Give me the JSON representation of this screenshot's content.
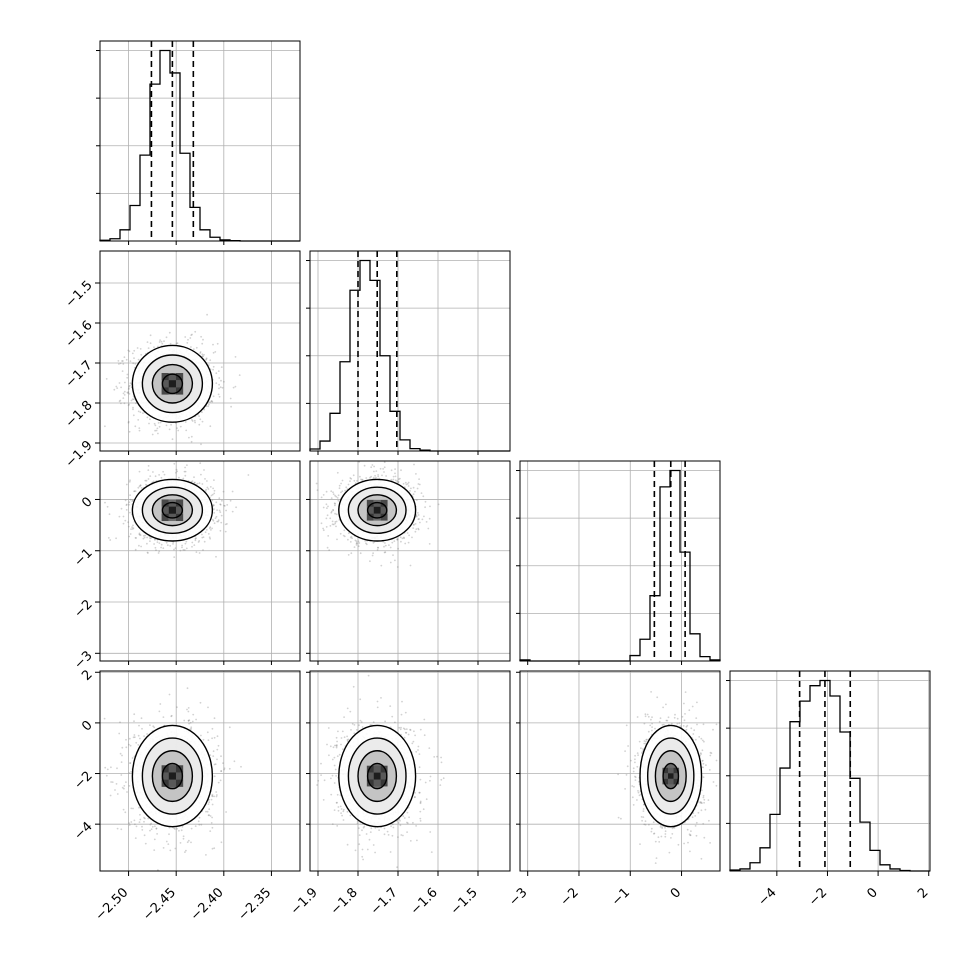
{
  "chart_data": {
    "type": "corner",
    "n_params": 4,
    "grid": true,
    "colors": {
      "line": "#000000",
      "grid": "#b0b0b0",
      "scatter": "#7f7f7f",
      "level_fills": [
        "#fcfcfc",
        "#e8e8e8",
        "#bdbdbd"
      ]
    },
    "params": [
      {
        "range": [
          -2.53,
          -2.32
        ],
        "ticks": [
          -2.5,
          -2.45,
          -2.4,
          -2.35
        ],
        "tick_labels": [
          "−2.50",
          "−2.45",
          "−2.40",
          "−2.35"
        ],
        "median": -2.454,
        "quantiles": [
          -2.476,
          -2.454,
          -2.432
        ],
        "sigma": 0.021,
        "y_ticks": [],
        "y_tick_labels": []
      },
      {
        "range": [
          -1.92,
          -1.42
        ],
        "ticks": [
          -1.9,
          -1.8,
          -1.7,
          -1.6,
          -1.5
        ],
        "tick_labels": [
          "−1.9",
          "−1.8",
          "−1.7",
          "−1.6",
          "−1.5"
        ],
        "median": -1.752,
        "quantiles": [
          -1.8,
          -1.752,
          -1.703
        ],
        "sigma": 0.048,
        "y_ticks": [
          -1.9,
          -1.8,
          -1.7,
          -1.6,
          -1.5
        ],
        "y_tick_labels": [
          "−1.9",
          "−1.8",
          "−1.7",
          "−1.6",
          "−1.5"
        ]
      },
      {
        "range": [
          -3.15,
          0.75
        ],
        "ticks": [
          -3,
          -2,
          -1,
          0
        ],
        "tick_labels": [
          "−3",
          "−2",
          "−1",
          "0"
        ],
        "median": -0.21,
        "quantiles": [
          -0.53,
          -0.21,
          0.07
        ],
        "sigma": 0.3,
        "y_ticks": [
          -3,
          -2,
          -1,
          0
        ],
        "y_tick_labels": [
          "−3",
          "−2",
          "−1",
          "0"
        ]
      },
      {
        "range": [
          -5.85,
          2.05
        ],
        "ticks": [
          -4,
          -2,
          0,
          2
        ],
        "tick_labels": [
          "−4",
          "−2",
          "0",
          "2"
        ],
        "median": -2.1,
        "quantiles": [
          -3.1,
          -2.1,
          -1.1
        ],
        "sigma": 1.0,
        "y_ticks": [
          -4,
          -2,
          0,
          2
        ],
        "y_tick_labels": [
          "−4",
          "−2",
          "0",
          "2"
        ]
      }
    ],
    "histograms": [
      {
        "param": 0,
        "bin_edges": [
          -2.53,
          -2.5195,
          -2.509,
          -2.4985,
          -2.488,
          -2.4775,
          -2.467,
          -2.4565,
          -2.446,
          -2.4355,
          -2.425,
          -2.4145,
          -2.404,
          -2.3935,
          -2.383,
          -2.3725,
          -2.362,
          -2.3515,
          -2.341,
          -2.3305,
          -2.32
        ],
        "counts": [
          2,
          6,
          30,
          95,
          230,
          420,
          510,
          450,
          235,
          90,
          30,
          10,
          3,
          1,
          0,
          0,
          0,
          0,
          0,
          0
        ]
      },
      {
        "param": 1,
        "bin_edges": [
          -1.92,
          -1.895,
          -1.87,
          -1.845,
          -1.82,
          -1.795,
          -1.77,
          -1.745,
          -1.72,
          -1.695,
          -1.67,
          -1.645,
          -1.62,
          -1.595,
          -1.57,
          -1.545,
          -1.52,
          -1.495,
          -1.47,
          -1.445,
          -1.42
        ],
        "counts": [
          5,
          25,
          95,
          225,
          405,
          480,
          430,
          240,
          100,
          28,
          6,
          2,
          0,
          0,
          0,
          0,
          0,
          0,
          0,
          0
        ]
      },
      {
        "param": 2,
        "bin_edges": [
          -3.15,
          -2.955,
          -2.76,
          -2.565,
          -2.37,
          -2.175,
          -1.98,
          -1.785,
          -1.59,
          -1.395,
          -1.2,
          -1.005,
          -0.81,
          -0.615,
          -0.42,
          -0.225,
          -0.03,
          0.165,
          0.36,
          0.555,
          0.75
        ],
        "counts": [
          3,
          0,
          0,
          0,
          0,
          0,
          0,
          0,
          0,
          0,
          0,
          15,
          60,
          180,
          480,
          525,
          300,
          75,
          12,
          3
        ]
      },
      {
        "param": 3,
        "bin_edges": [
          -5.85,
          -5.455,
          -5.06,
          -4.665,
          -4.27,
          -3.875,
          -3.48,
          -3.085,
          -2.69,
          -2.295,
          -1.9,
          -1.505,
          -1.11,
          -0.715,
          -0.32,
          0.075,
          0.47,
          0.865,
          1.26,
          1.655,
          2.05
        ],
        "counts": [
          2,
          4,
          16,
          45,
          110,
          200,
          290,
          330,
          360,
          370,
          340,
          270,
          180,
          95,
          40,
          12,
          4,
          1,
          0,
          0
        ]
      }
    ]
  }
}
